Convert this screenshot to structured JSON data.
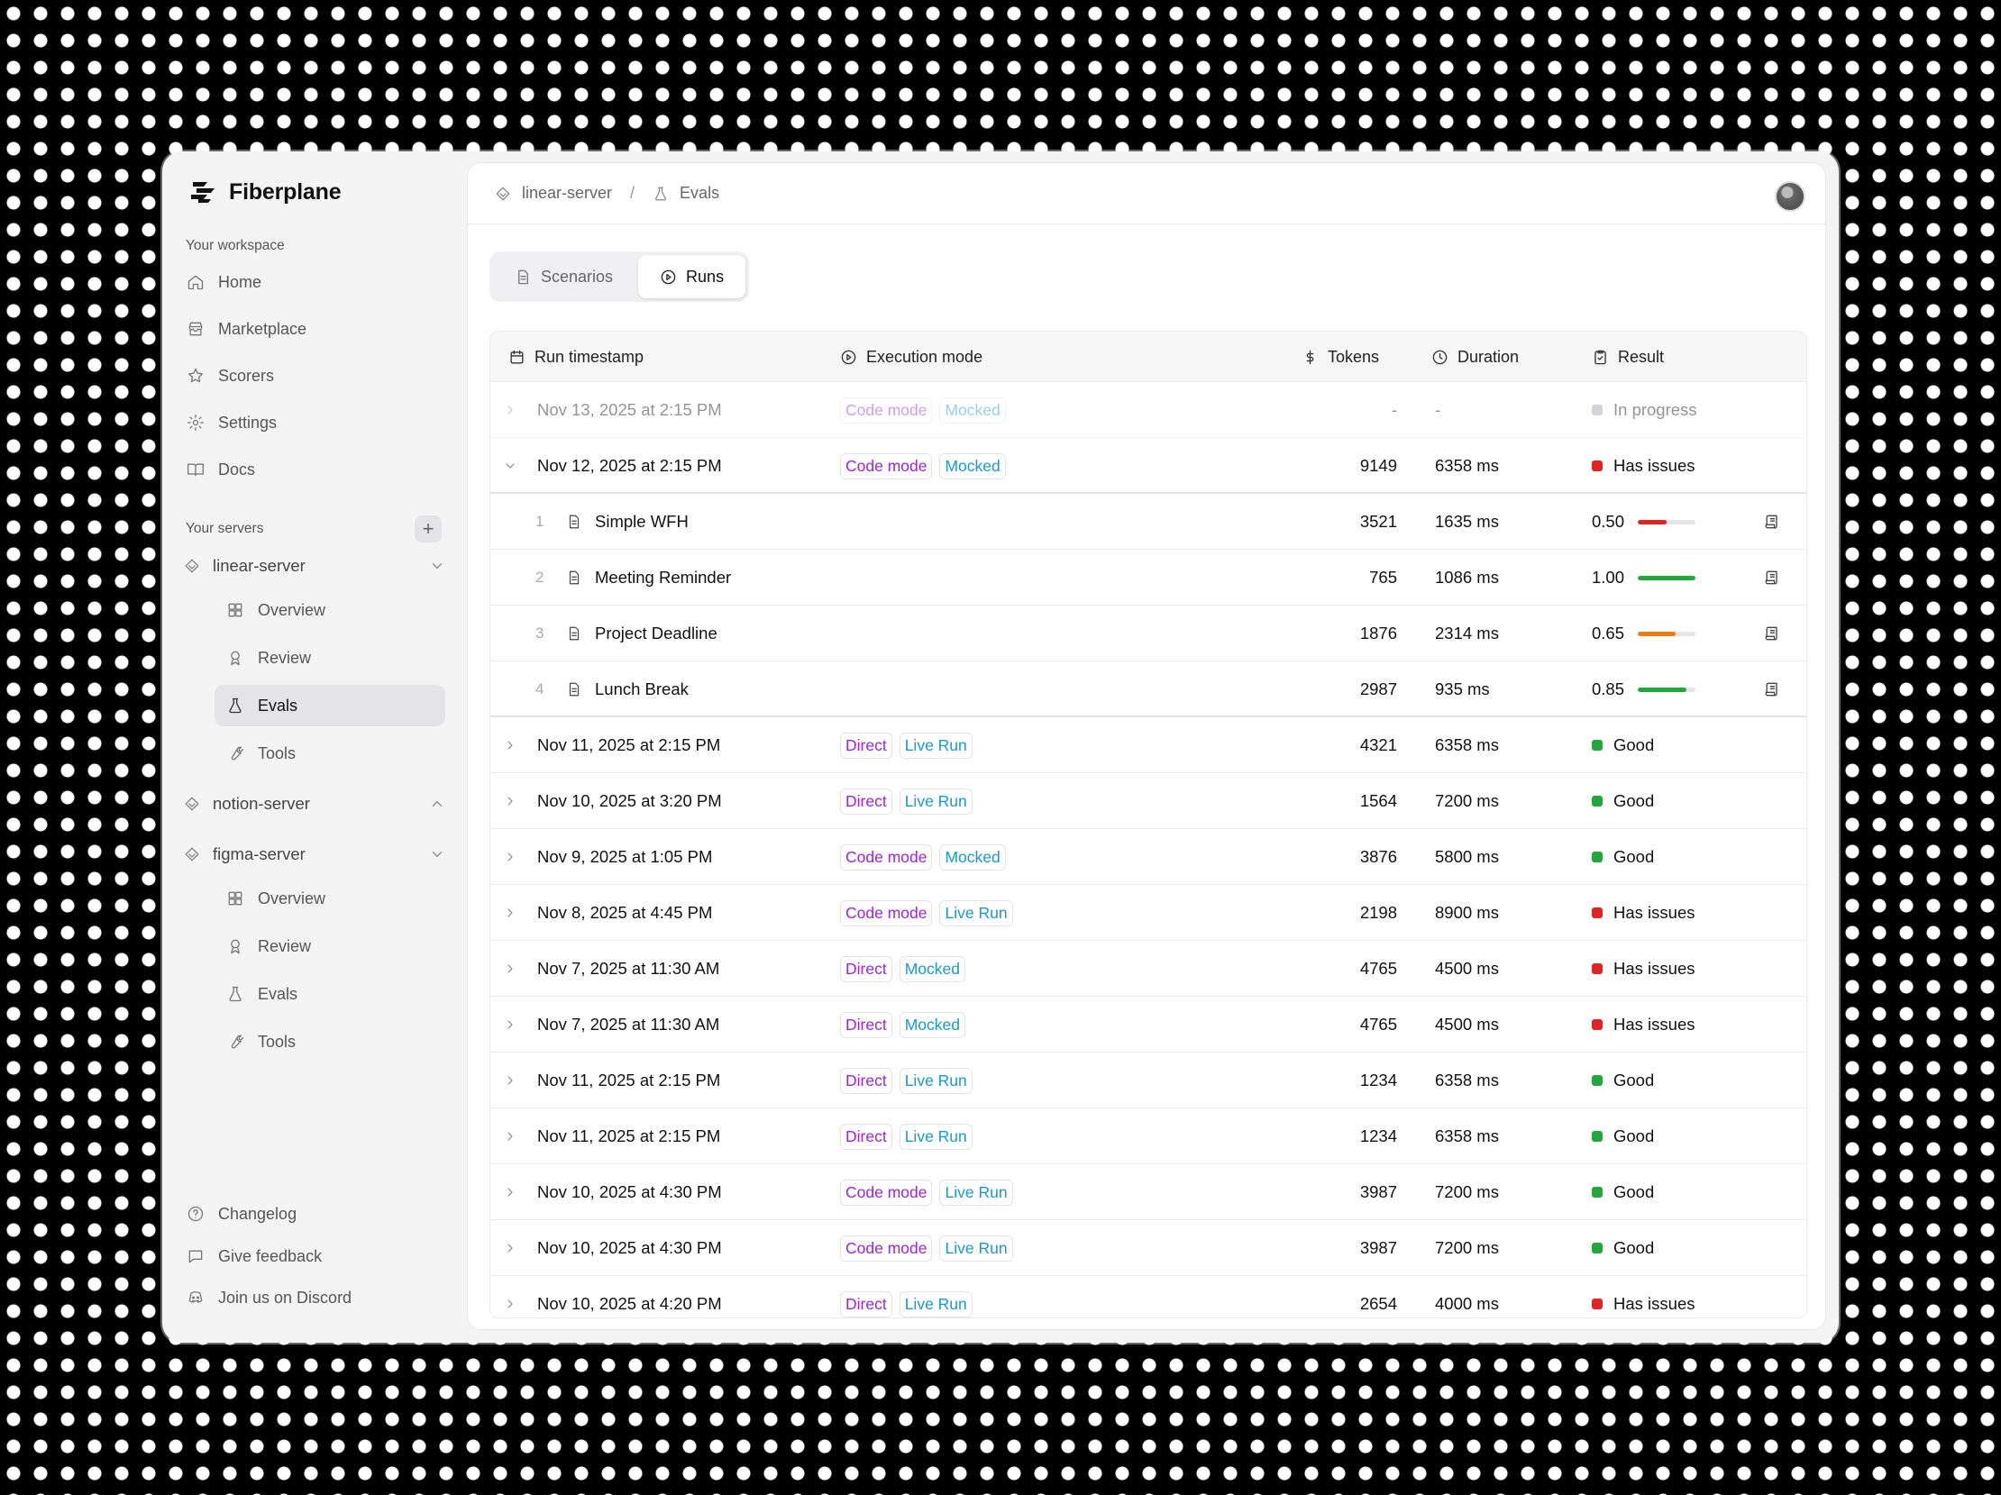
{
  "app": {
    "name": "Fiberplane"
  },
  "sidebar": {
    "workspace_label": "Your workspace",
    "nav": [
      {
        "label": "Home",
        "icon": "home-icon"
      },
      {
        "label": "Marketplace",
        "icon": "store-icon"
      },
      {
        "label": "Scorers",
        "icon": "star-icon"
      },
      {
        "label": "Settings",
        "icon": "gear-icon"
      },
      {
        "label": "Docs",
        "icon": "book-icon"
      }
    ],
    "servers_label": "Your servers",
    "add_label": "+",
    "servers": [
      {
        "name": "linear-server",
        "items": [
          "Overview",
          "Review",
          "Evals",
          "Tools"
        ]
      },
      {
        "name": "notion-server",
        "items": []
      },
      {
        "name": "figma-server",
        "items": [
          "Overview",
          "Review",
          "Evals",
          "Tools"
        ]
      }
    ],
    "footer": [
      "Changelog",
      "Give feedback",
      "Join us on Discord"
    ]
  },
  "breadcrumb": {
    "server": "linear-server",
    "sep": "/",
    "page": "Evals"
  },
  "tabs": [
    {
      "label": "Scenarios"
    },
    {
      "label": "Runs"
    }
  ],
  "table": {
    "headers": {
      "timestamp": "Run timestamp",
      "mode": "Execution mode",
      "tokens": "Tokens",
      "duration": "Duration",
      "result": "Result"
    },
    "rows": [
      {
        "timestamp": "Nov 13, 2025 at 2:15 PM",
        "mode": "Code mode",
        "env": "Mocked",
        "tokens": "-",
        "duration": "-",
        "result": "In progress"
      },
      {
        "timestamp": "Nov 12, 2025 at 2:15 PM",
        "mode": "Code mode",
        "env": "Mocked",
        "tokens": "9149",
        "duration": "6358 ms",
        "result": "Has issues"
      },
      {
        "timestamp": "Nov 11, 2025 at 2:15 PM",
        "mode": "Direct",
        "env": "Live Run",
        "tokens": "4321",
        "duration": "6358 ms",
        "result": "Good"
      },
      {
        "timestamp": "Nov 10, 2025 at 3:20 PM",
        "mode": "Direct",
        "env": "Live Run",
        "tokens": "1564",
        "duration": "7200 ms",
        "result": "Good"
      },
      {
        "timestamp": "Nov 9, 2025 at 1:05 PM",
        "mode": "Code mode",
        "env": "Mocked",
        "tokens": "3876",
        "duration": "5800 ms",
        "result": "Good"
      },
      {
        "timestamp": "Nov 8, 2025 at 4:45 PM",
        "mode": "Code mode",
        "env": "Live Run",
        "tokens": "2198",
        "duration": "8900 ms",
        "result": "Has issues"
      },
      {
        "timestamp": "Nov 7, 2025 at 11:30 AM",
        "mode": "Direct",
        "env": "Mocked",
        "tokens": "4765",
        "duration": "4500 ms",
        "result": "Has issues"
      },
      {
        "timestamp": "Nov 7, 2025 at 11:30 AM",
        "mode": "Direct",
        "env": "Mocked",
        "tokens": "4765",
        "duration": "4500 ms",
        "result": "Has issues"
      },
      {
        "timestamp": "Nov 11, 2025 at 2:15 PM",
        "mode": "Direct",
        "env": "Live Run",
        "tokens": "1234",
        "duration": "6358 ms",
        "result": "Good"
      },
      {
        "timestamp": "Nov 11, 2025 at 2:15 PM",
        "mode": "Direct",
        "env": "Live Run",
        "tokens": "1234",
        "duration": "6358 ms",
        "result": "Good"
      },
      {
        "timestamp": "Nov 10, 2025 at 4:30 PM",
        "mode": "Code mode",
        "env": "Live Run",
        "tokens": "3987",
        "duration": "7200 ms",
        "result": "Good"
      },
      {
        "timestamp": "Nov 10, 2025 at 4:30 PM",
        "mode": "Code mode",
        "env": "Live Run",
        "tokens": "3987",
        "duration": "7200 ms",
        "result": "Good"
      },
      {
        "timestamp": "Nov 10, 2025 at 4:20 PM",
        "mode": "Direct",
        "env": "Live Run",
        "tokens": "2654",
        "duration": "4000 ms",
        "result": "Has issues"
      }
    ],
    "sub_rows": [
      {
        "index": "1",
        "name": "Simple WFH",
        "tokens": "3521",
        "duration": "1635 ms",
        "score": "0.50",
        "fraction": 0.5,
        "color": "#e02424"
      },
      {
        "index": "2",
        "name": "Meeting Reminder",
        "tokens": "765",
        "duration": "1086 ms",
        "score": "1.00",
        "fraction": 1.0,
        "color": "#22a83a"
      },
      {
        "index": "3",
        "name": "Project Deadline",
        "tokens": "1876",
        "duration": "2314 ms",
        "score": "0.65",
        "fraction": 0.65,
        "color": "#ee7a12"
      },
      {
        "index": "4",
        "name": "Lunch Break",
        "tokens": "2987",
        "duration": "935 ms",
        "score": "0.85",
        "fraction": 0.85,
        "color": "#22a83a"
      }
    ]
  },
  "colors": {
    "good": "#22a83a",
    "issues": "#e02424",
    "progress": "#a1a1aa",
    "mode_purple": "#9b27d6",
    "env_blue": "#1899cf"
  }
}
